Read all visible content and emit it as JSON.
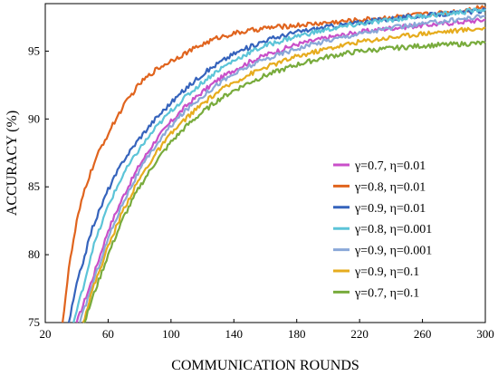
{
  "chart_data": {
    "type": "line",
    "xlabel": "COMMUNICATION ROUNDS",
    "ylabel": "ACCURACY (%)",
    "xlim": [
      20,
      300
    ],
    "ylim": [
      75,
      98.5
    ],
    "xticks": [
      20,
      60,
      100,
      140,
      180,
      220,
      260,
      300
    ],
    "yticks": [
      75,
      80,
      85,
      90,
      95
    ],
    "grid": false,
    "legend_position": "bottom-right",
    "series": [
      {
        "name": "γ=0.7, η=0.01",
        "color": "#c94fc9",
        "x": [
          40,
          50,
          60,
          70,
          80,
          90,
          100,
          110,
          120,
          130,
          140,
          150,
          160,
          180,
          200,
          220,
          240,
          260,
          280,
          300
        ],
        "y": [
          75,
          78.2,
          81.8,
          84.4,
          86.6,
          88.4,
          89.8,
          91.0,
          92.0,
          92.9,
          93.6,
          94.2,
          94.7,
          95.5,
          96.0,
          96.4,
          96.7,
          96.9,
          97.1,
          97.3
        ]
      },
      {
        "name": "γ=0.8, η=0.01",
        "color": "#e0641e",
        "x": [
          31,
          35,
          40,
          45,
          50,
          55,
          60,
          65,
          70,
          75,
          80,
          90,
          100,
          110,
          120,
          130,
          140,
          150,
          160,
          180,
          200,
          220,
          240,
          260,
          280,
          300
        ],
        "y": [
          75,
          79.0,
          82.4,
          84.8,
          86.4,
          87.8,
          88.9,
          90.0,
          91.0,
          91.8,
          92.6,
          93.6,
          94.3,
          94.9,
          95.5,
          96.0,
          96.3,
          96.5,
          96.7,
          96.9,
          97.1,
          97.3,
          97.5,
          97.7,
          97.9,
          98.3
        ]
      },
      {
        "name": "γ=0.9, η=0.01",
        "color": "#3563bc",
        "x": [
          35,
          40,
          50,
          60,
          70,
          80,
          90,
          100,
          110,
          120,
          130,
          140,
          150,
          160,
          180,
          200,
          220,
          240,
          260,
          280,
          300
        ],
        "y": [
          75,
          77.8,
          82.0,
          84.8,
          87.0,
          88.6,
          90.0,
          91.2,
          92.3,
          93.3,
          94.1,
          94.8,
          95.3,
          95.8,
          96.4,
          96.8,
          97.1,
          97.4,
          97.6,
          97.8,
          98.0
        ]
      },
      {
        "name": "γ=0.8, η=0.001",
        "color": "#5cc4d8",
        "x": [
          38,
          45,
          50,
          60,
          70,
          80,
          90,
          100,
          110,
          120,
          130,
          140,
          150,
          160,
          180,
          200,
          220,
          240,
          260,
          280,
          300
        ],
        "y": [
          75,
          78.0,
          80.4,
          83.6,
          86.0,
          87.8,
          89.3,
          90.6,
          91.7,
          92.7,
          93.6,
          94.3,
          94.9,
          95.4,
          96.1,
          96.6,
          97.0,
          97.3,
          97.6,
          97.8,
          98.1
        ]
      },
      {
        "name": "γ=0.9, η=0.001",
        "color": "#8aa8d8",
        "x": [
          42,
          50,
          60,
          70,
          80,
          90,
          100,
          110,
          120,
          130,
          140,
          150,
          160,
          180,
          200,
          220,
          240,
          260,
          280,
          300
        ],
        "y": [
          75,
          77.8,
          81.2,
          84.0,
          86.2,
          88.0,
          89.5,
          90.7,
          91.7,
          92.6,
          93.3,
          93.9,
          94.4,
          95.2,
          95.8,
          96.3,
          96.7,
          97.0,
          97.3,
          97.6
        ]
      },
      {
        "name": "γ=0.9, η=0.1",
        "color": "#e6ac1e",
        "x": [
          44,
          50,
          60,
          70,
          80,
          90,
          100,
          110,
          120,
          130,
          140,
          150,
          160,
          180,
          200,
          220,
          240,
          260,
          280,
          300
        ],
        "y": [
          75,
          77.4,
          80.6,
          83.4,
          85.6,
          87.4,
          88.9,
          90.1,
          91.1,
          92.0,
          92.7,
          93.3,
          93.8,
          94.6,
          95.2,
          95.7,
          96.0,
          96.3,
          96.5,
          96.7
        ]
      },
      {
        "name": "γ=0.7, η=0.1",
        "color": "#78ab3c",
        "x": [
          45,
          50,
          60,
          70,
          80,
          90,
          100,
          110,
          120,
          130,
          140,
          150,
          160,
          180,
          200,
          220,
          240,
          260,
          280,
          300
        ],
        "y": [
          75,
          76.8,
          80.0,
          82.8,
          85.0,
          86.8,
          88.3,
          89.5,
          90.5,
          91.4,
          92.1,
          92.7,
          93.2,
          94.0,
          94.6,
          95.0,
          95.2,
          95.4,
          95.5,
          95.6
        ]
      }
    ]
  }
}
